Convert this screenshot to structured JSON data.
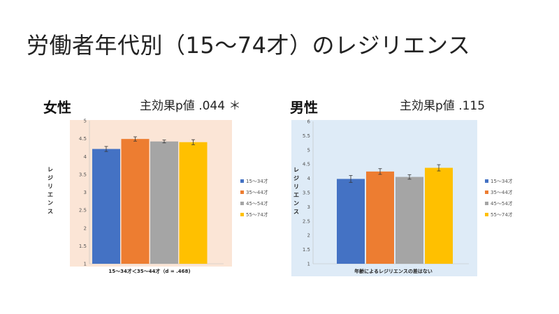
{
  "slide": {
    "title": "労働者年代別（15～74才）のレジリエンス"
  },
  "panels": [
    {
      "gender_label": "女性",
      "effect_text": "主効果p値 .044 ＊"
    },
    {
      "gender_label": "男性",
      "effect_text": "主効果p値 .115"
    }
  ],
  "colors": {
    "female_bg": "#FBE5D6",
    "male_bg": "#DEEBF7",
    "series": [
      "#4472C4",
      "#ED7D31",
      "#A5A5A5",
      "#FFC000"
    ]
  },
  "chart_data": [
    {
      "type": "bar",
      "title": "",
      "categories": [
        "15～34才",
        "35～44才",
        "45～54才",
        "55～74才"
      ],
      "values": [
        4.21,
        4.49,
        4.42,
        4.4
      ],
      "errors": [
        0.07,
        0.06,
        0.04,
        0.07
      ],
      "ylabel": "レジリエンス",
      "xlabel": "15～34才＜35～44才（d = .468)",
      "ylim": [
        1,
        5
      ],
      "yticks": [
        "1",
        "1.5",
        "2",
        "2.5",
        "3",
        "3.5",
        "4",
        "4.5",
        "5"
      ],
      "legend": [
        "15～34才",
        "35～44才",
        "45～54才",
        "55～74才"
      ],
      "legend_position": "right"
    },
    {
      "type": "bar",
      "title": "",
      "categories": [
        "15～34才",
        "35～44才",
        "45～54才",
        "55～74才"
      ],
      "values": [
        3.98,
        4.24,
        4.05,
        4.37
      ],
      "errors": [
        0.12,
        0.1,
        0.08,
        0.11
      ],
      "ylabel": "レジリエンス",
      "xlabel": "年齢によるレジリエンスの差はない",
      "ylim": [
        1,
        6
      ],
      "yticks": [
        "1",
        "1.5",
        "2",
        "2.5",
        "3",
        "3.5",
        "4",
        "4.5",
        "5",
        "5.5",
        "6"
      ],
      "legend": [
        "15～34才",
        "35～44才",
        "45～54才",
        "55～74才"
      ],
      "legend_position": "right"
    }
  ]
}
